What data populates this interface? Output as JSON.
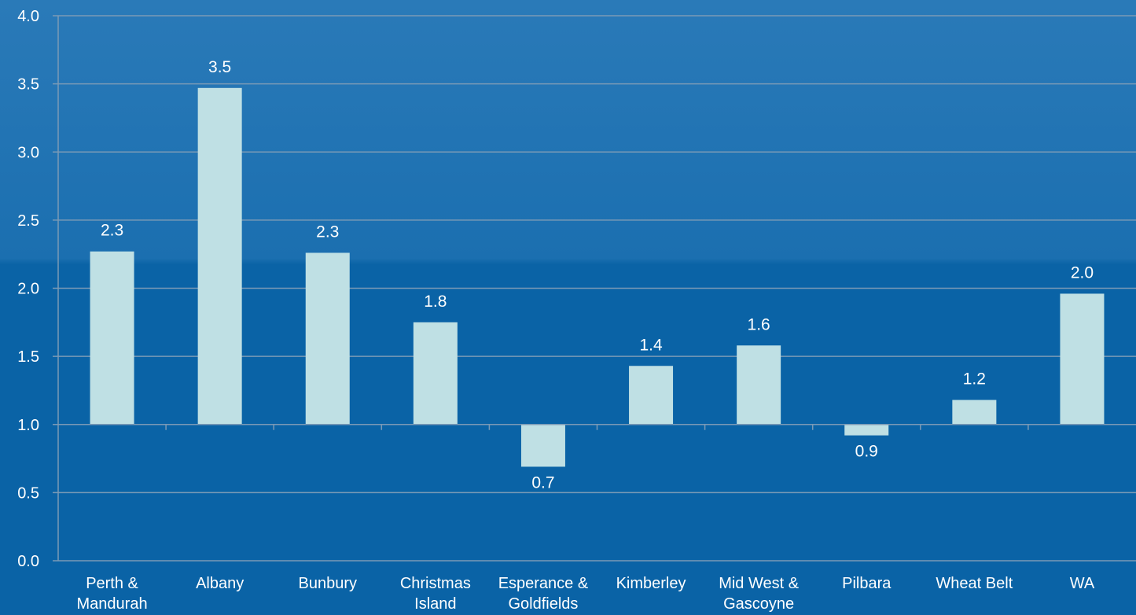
{
  "chart_data": {
    "type": "bar",
    "categories": [
      "Perth & Mandurah",
      "Albany",
      "Bunbury",
      "Christmas Island",
      "Esperance & Goldfields",
      "Kimberley",
      "Mid West & Gascoyne",
      "Pilbara",
      "Wheat Belt",
      "WA"
    ],
    "category_lines": [
      [
        "Perth &",
        "Mandurah"
      ],
      [
        "Albany"
      ],
      [
        "Bunbury"
      ],
      [
        "Christmas",
        "Island"
      ],
      [
        "Esperance &",
        "Goldfields"
      ],
      [
        "Kimberley"
      ],
      [
        "Mid West &",
        "Gascoyne"
      ],
      [
        "Pilbara"
      ],
      [
        "Wheat Belt"
      ],
      [
        "WA"
      ]
    ],
    "values": [
      2.27,
      3.47,
      2.26,
      1.75,
      0.69,
      1.43,
      1.58,
      0.92,
      1.18,
      1.96
    ],
    "value_labels": [
      "2.3",
      "3.5",
      "2.3",
      "1.8",
      "0.7",
      "1.4",
      "1.6",
      "0.9",
      "1.2",
      "2.0"
    ],
    "baseline": 1.0,
    "ylim": [
      0,
      4.0
    ],
    "yticks": [
      "0.0",
      "0.5",
      "1.0",
      "1.5",
      "2.0",
      "2.5",
      "3.0",
      "3.5",
      "4.0"
    ],
    "title": "",
    "xlabel": "",
    "ylabel": "",
    "grid": true,
    "colors": {
      "background": "#0a63a6",
      "background_top": "#1d74b4",
      "bar": "#bfe0e4",
      "gridline": "#7a9ab6",
      "text": "#ffffff"
    }
  }
}
